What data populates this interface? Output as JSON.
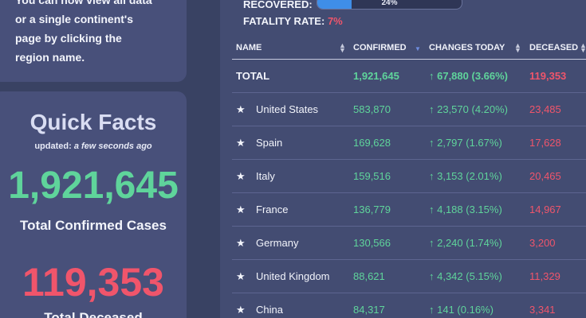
{
  "sidebar": {
    "intro_lines": [
      "You can now view all data",
      "or a single continent's",
      "page by clicking the",
      "region name."
    ],
    "quick_facts": {
      "title": "Quick Facts",
      "updated_label": "updated:",
      "updated_value": "a few seconds ago",
      "confirmed_value": "1,921,645",
      "confirmed_label": "Total Confirmed Cases",
      "deceased_value": "119,353",
      "deceased_label": "Total Deceased"
    }
  },
  "stats": {
    "recovered_label": "RECOVERED:",
    "recovered": {
      "value": 24,
      "label": "24%"
    },
    "fatality_label": "FATALITY RATE:",
    "fatality_value": "7%"
  },
  "table": {
    "columns": [
      "NAME",
      "CONFIRMED",
      "CHANGES TODAY",
      "DECEASED"
    ],
    "rows": [
      [
        "TOTAL",
        "1,921,645",
        "↑ 67,880 (3.66%)",
        "119,353"
      ],
      [
        "United States",
        "583,870",
        "↑ 23,570 (4.20%)",
        "23,485"
      ],
      [
        "Spain",
        "169,628",
        "↑ 2,797 (1.67%)",
        "17,628"
      ],
      [
        "Italy",
        "159,516",
        "↑ 3,153 (2.01%)",
        "20,465"
      ],
      [
        "France",
        "136,779",
        "↑ 4,188 (3.15%)",
        "14,967"
      ],
      [
        "Germany",
        "130,566",
        "↑ 2,240 (1.74%)",
        "3,200"
      ],
      [
        "United Kingdom",
        "88,621",
        "↑ 4,342 (5.15%)",
        "11,329"
      ],
      [
        "China",
        "84,317",
        "↑ 141 (0.16%)",
        "3,341"
      ]
    ]
  }
}
